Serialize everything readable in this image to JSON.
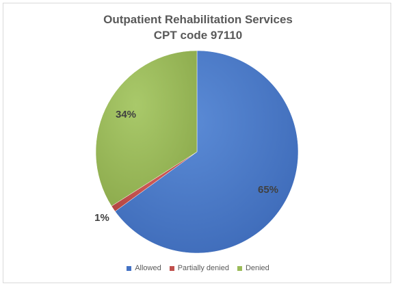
{
  "chart_data": {
    "type": "pie",
    "title": "Outpatient Rehabilitation Services",
    "subtitle": "CPT code 97110",
    "categories": [
      "Allowed",
      "Partially denied",
      "Denied"
    ],
    "values": [
      65,
      1,
      34
    ],
    "labels": [
      "65%",
      "1%",
      "34%"
    ],
    "colors": [
      "#4472c4",
      "#c0504d",
      "#9bbb59"
    ],
    "legend_position": "bottom",
    "start_angle_deg": 0,
    "direction": "clockwise"
  }
}
